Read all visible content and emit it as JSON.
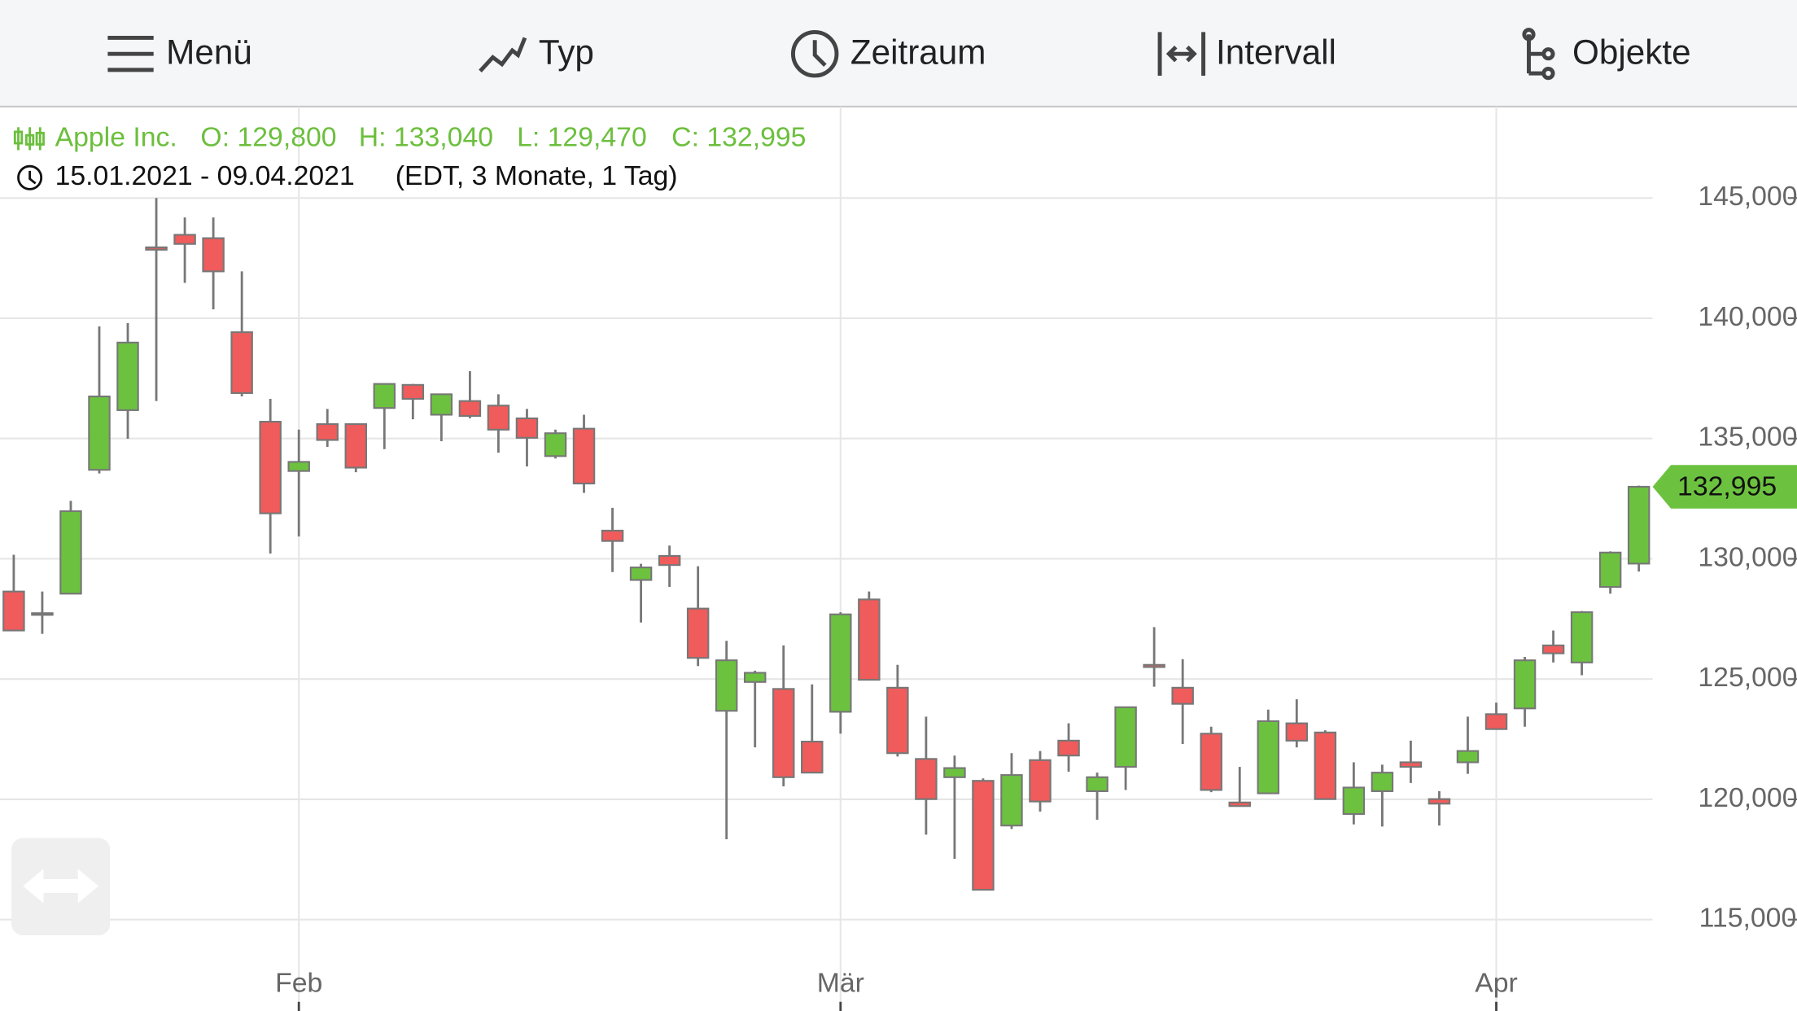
{
  "toolbar": {
    "items": [
      "Menü",
      "Typ",
      "Zeitraum",
      "Intervall",
      "Objekte"
    ]
  },
  "chart_data": {
    "type": "candlestick",
    "title": "Apple Inc.",
    "ohlc_labels": [
      "O: 129,800",
      "H: 133,040",
      "L: 129,470",
      "C: 132,995"
    ],
    "date_range": "15.01.2021 - 09.04.2021",
    "subtitle": "(EDT, 3 Monate, 1 Tag)",
    "categories": [
      null,
      null,
      null,
      null,
      null,
      null,
      null,
      null,
      null,
      null,
      "Feb",
      null,
      null,
      null,
      null,
      null,
      null,
      null,
      null,
      null,
      null,
      null,
      null,
      null,
      null,
      null,
      null,
      null,
      null,
      "Mär",
      null,
      null,
      null,
      null,
      null,
      null,
      null,
      null,
      null,
      null,
      null,
      null,
      null,
      null,
      null,
      null,
      null,
      null,
      null,
      null,
      null,
      null,
      "Apr",
      null,
      null,
      null,
      null,
      null
    ],
    "open": [
      128.64,
      127.74,
      128.55,
      133.7,
      136.18,
      142.95,
      143.47,
      143.33,
      139.42,
      135.7,
      133.65,
      135.6,
      135.6,
      136.27,
      137.23,
      135.99,
      136.56,
      136.37,
      135.84,
      134.27,
      135.41,
      131.17,
      129.12,
      130.12,
      127.93,
      123.68,
      124.88,
      124.59,
      122.4,
      123.64,
      128.31,
      124.64,
      121.68,
      120.92,
      120.77,
      118.91,
      121.63,
      122.44,
      120.34,
      121.35,
      125.59,
      124.64,
      122.73,
      119.87,
      120.25,
      123.16,
      122.78,
      119.39,
      120.34,
      121.54,
      120.01,
      121.54,
      123.54,
      123.78,
      126.4,
      125.69,
      128.83,
      129.8
    ],
    "high": [
      130.17,
      128.64,
      132.41,
      139.66,
      139.8,
      145.0,
      144.19,
      144.19,
      141.95,
      136.65,
      135.37,
      136.23,
      135.6,
      137.27,
      137.27,
      136.84,
      137.8,
      136.84,
      136.23,
      135.37,
      135.99,
      132.12,
      129.79,
      130.55,
      129.69,
      126.59,
      125.35,
      126.4,
      124.78,
      127.78,
      128.64,
      125.59,
      123.44,
      121.82,
      120.87,
      121.92,
      122.01,
      123.16,
      121.11,
      123.83,
      127.16,
      125.83,
      123.02,
      121.35,
      123.73,
      124.16,
      122.87,
      121.54,
      121.44,
      122.44,
      120.34,
      123.44,
      124.02,
      125.92,
      127.02,
      127.83,
      130.31,
      133.04
    ],
    "low": [
      127.02,
      126.88,
      128.55,
      133.55,
      134.99,
      136.56,
      141.47,
      140.37,
      136.75,
      130.22,
      130.93,
      134.65,
      133.6,
      134.56,
      135.8,
      134.89,
      135.84,
      134.41,
      133.84,
      134.17,
      132.74,
      129.45,
      127.35,
      128.83,
      125.54,
      118.34,
      122.16,
      120.54,
      121.11,
      122.73,
      124.97,
      121.78,
      118.53,
      117.53,
      116.24,
      118.77,
      119.49,
      121.15,
      119.15,
      120.39,
      124.68,
      122.3,
      120.3,
      119.72,
      120.25,
      122.16,
      120.01,
      118.96,
      118.87,
      120.68,
      118.91,
      121.06,
      122.92,
      123.02,
      125.69,
      125.16,
      128.55,
      129.47
    ],
    "close": [
      127.02,
      127.7,
      131.98,
      136.75,
      138.99,
      142.85,
      143.09,
      141.95,
      136.89,
      131.89,
      134.03,
      134.94,
      133.79,
      137.27,
      136.65,
      136.84,
      135.94,
      135.37,
      135.03,
      135.22,
      133.13,
      130.74,
      129.64,
      129.74,
      125.88,
      125.78,
      125.26,
      120.92,
      121.11,
      127.69,
      124.97,
      121.92,
      120.01,
      121.3,
      116.24,
      121.01,
      119.91,
      121.82,
      120.92,
      123.83,
      125.5,
      123.97,
      120.39,
      119.72,
      123.25,
      122.44,
      120.01,
      120.49,
      121.11,
      121.35,
      119.82,
      122.01,
      122.92,
      125.78,
      126.07,
      127.78,
      130.26,
      132.995
    ],
    "last_close_label": "132,995",
    "up_color": "#6cc23f",
    "down_color": "#f05b5b",
    "wick_color": "#777777",
    "ylim": [
      111.2,
      148.8
    ],
    "yticks": [
      {
        "value": 115,
        "label": "115,000"
      },
      {
        "value": 120,
        "label": "120,000"
      },
      {
        "value": 125,
        "label": "125,000"
      },
      {
        "value": 130,
        "label": "130,000"
      },
      {
        "value": 135,
        "label": "135,000"
      },
      {
        "value": 140,
        "label": "140,000"
      },
      {
        "value": 145,
        "label": "145,000"
      }
    ],
    "grid": true
  }
}
